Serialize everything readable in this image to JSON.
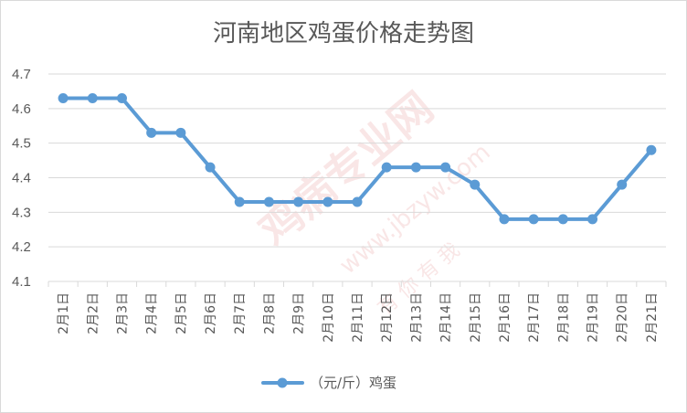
{
  "colors": {
    "series": "#5b9bd5",
    "grid": "#d9d9d9",
    "text": "#595959",
    "watermark": "#e8a0a0"
  },
  "watermark": {
    "main": "鸡病专业网",
    "url": "www.jbzyw.com",
    "slogan": "有 你 有 我"
  },
  "chart_data": {
    "type": "line",
    "title": "河南地区鸡蛋价格走势图",
    "xlabel": "",
    "ylabel": "",
    "categories": [
      "2月1日",
      "2月2日",
      "2月3日",
      "2月4日",
      "2月5日",
      "2月6日",
      "2月7日",
      "2月8日",
      "2月9日",
      "2月10日",
      "2月11日",
      "2月12日",
      "2月13日",
      "2月14日",
      "2月15日",
      "2月16日",
      "2月17日",
      "2月18日",
      "2月19日",
      "2月20日",
      "2月21日"
    ],
    "series": [
      {
        "name": "（元/斤）鸡蛋",
        "values": [
          4.63,
          4.63,
          4.63,
          4.53,
          4.53,
          4.43,
          4.33,
          4.33,
          4.33,
          4.33,
          4.33,
          4.43,
          4.43,
          4.43,
          4.38,
          4.28,
          4.28,
          4.28,
          4.28,
          4.38,
          4.48
        ]
      }
    ],
    "ylim": [
      4.1,
      4.7
    ],
    "yticks": [
      "4.1",
      "4.2",
      "4.3",
      "4.4",
      "4.5",
      "4.6",
      "4.7"
    ],
    "grid": true,
    "legend_position": "bottom"
  }
}
